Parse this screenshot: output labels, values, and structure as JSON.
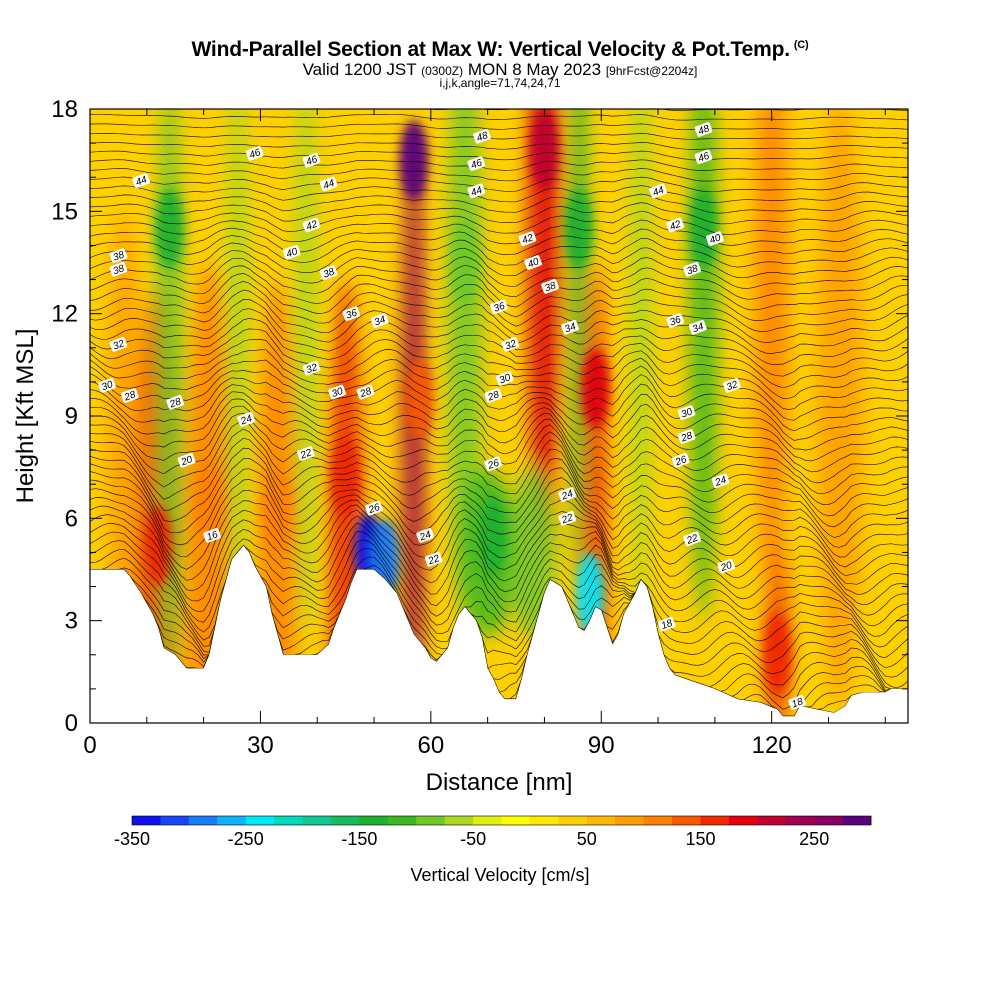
{
  "chart_data": {
    "type": "heatmap",
    "title": "Wind-Parallel Section at Max W: Vertical Velocity & Pot.Temp.",
    "copyright_mark": "(C)",
    "subtitle_valid": "Valid 1200 JST",
    "subtitle_utc": "(0300Z)",
    "subtitle_date": "MON 8 May 2023",
    "subtitle_fcst": "[9hrFcst@2204z]",
    "subtitle_indices": "i,j,k,angle=71,74,24,71",
    "xlabel": "Distance [nm]",
    "ylabel": "Height [Kft MSL]",
    "xlim": [
      0,
      144
    ],
    "ylim": [
      0,
      18
    ],
    "x_ticks": [
      0,
      30,
      60,
      90,
      120
    ],
    "y_ticks": [
      0,
      3,
      6,
      9,
      12,
      15,
      18
    ],
    "colorbar": {
      "label": "Vertical Velocity [cm/s]",
      "min": -350,
      "max": 300,
      "step": 25,
      "tick_values": [
        -350,
        -250,
        -150,
        -50,
        50,
        150,
        250
      ],
      "tick_labels": [
        "-350",
        "-250",
        "-150",
        "-50",
        "50",
        "150",
        "250"
      ],
      "colors": [
        "#1010ee",
        "#1747f5",
        "#1a7cf8",
        "#12b2fb",
        "#00e8f8",
        "#00d8b8",
        "#10c890",
        "#18bb60",
        "#20b030",
        "#3cb820",
        "#70c828",
        "#a8d820",
        "#e0ee10",
        "#ffff00",
        "#ffe800",
        "#ffd000",
        "#ffb800",
        "#ff9c00",
        "#ff8000",
        "#f85a00",
        "#f02800",
        "#e00010",
        "#c00030",
        "#a00050",
        "#880060",
        "#5c0080"
      ]
    },
    "series": [
      {
        "name": "Vertical Velocity [cm/s]",
        "features": [
          {
            "x": 12,
            "y": 5.2,
            "value": 150
          },
          {
            "x": 21,
            "y": 6.5,
            "value": 100
          },
          {
            "x": 33,
            "y": 6.2,
            "value": 100
          },
          {
            "x": 45,
            "y": 7.2,
            "value": 150
          },
          {
            "x": 49,
            "y": 5.0,
            "value": -350
          },
          {
            "x": 52,
            "y": 4.8,
            "value": -300
          },
          {
            "x": 57,
            "y": 16.5,
            "value": 275
          },
          {
            "x": 58,
            "y": 9.5,
            "value": 125
          },
          {
            "x": 80,
            "y": 16.8,
            "value": 200
          },
          {
            "x": 89,
            "y": 9.8,
            "value": 175
          },
          {
            "x": 86,
            "y": 14.5,
            "value": -150
          },
          {
            "x": 88,
            "y": 3.8,
            "value": -250
          },
          {
            "x": 14,
            "y": 14.5,
            "value": -150
          },
          {
            "x": 66,
            "y": 13.5,
            "value": -100
          },
          {
            "x": 71,
            "y": 5.5,
            "value": -150
          },
          {
            "x": 108,
            "y": 14.5,
            "value": -150
          },
          {
            "x": 121,
            "y": 2.0,
            "value": 150
          }
        ]
      },
      {
        "name": "Pot.Temp.",
        "contour_labels": [
          {
            "text": "44",
            "x": 9,
            "y": 15.9
          },
          {
            "text": "38",
            "x": 5,
            "y": 13.7
          },
          {
            "text": "38",
            "x": 5,
            "y": 13.3
          },
          {
            "text": "32",
            "x": 5,
            "y": 11.1
          },
          {
            "text": "30",
            "x": 3,
            "y": 9.9
          },
          {
            "text": "28",
            "x": 7,
            "y": 9.6
          },
          {
            "text": "28",
            "x": 15,
            "y": 9.4
          },
          {
            "text": "24",
            "x": 27.5,
            "y": 8.9
          },
          {
            "text": "20",
            "x": 17,
            "y": 7.7
          },
          {
            "text": "16",
            "x": 21.5,
            "y": 5.5
          },
          {
            "text": "46",
            "x": 29,
            "y": 16.7
          },
          {
            "text": "46",
            "x": 39,
            "y": 16.5
          },
          {
            "text": "44",
            "x": 42,
            "y": 15.8
          },
          {
            "text": "42",
            "x": 39,
            "y": 14.6
          },
          {
            "text": "40",
            "x": 35.5,
            "y": 13.8
          },
          {
            "text": "38",
            "x": 42,
            "y": 13.2
          },
          {
            "text": "36",
            "x": 46,
            "y": 12.0
          },
          {
            "text": "34",
            "x": 51,
            "y": 11.8
          },
          {
            "text": "32",
            "x": 39,
            "y": 10.4
          },
          {
            "text": "30",
            "x": 43.5,
            "y": 9.7
          },
          {
            "text": "28",
            "x": 48.5,
            "y": 9.7
          },
          {
            "text": "22",
            "x": 38,
            "y": 7.9
          },
          {
            "text": "26",
            "x": 50,
            "y": 6.3
          },
          {
            "text": "24",
            "x": 59,
            "y": 5.5
          },
          {
            "text": "22",
            "x": 60.5,
            "y": 4.8
          },
          {
            "text": "48",
            "x": 69,
            "y": 17.2
          },
          {
            "text": "46",
            "x": 68,
            "y": 16.4
          },
          {
            "text": "44",
            "x": 68,
            "y": 15.6
          },
          {
            "text": "42",
            "x": 77,
            "y": 14.2
          },
          {
            "text": "40",
            "x": 78,
            "y": 13.5
          },
          {
            "text": "38",
            "x": 81,
            "y": 12.8
          },
          {
            "text": "36",
            "x": 72,
            "y": 12.2
          },
          {
            "text": "32",
            "x": 74,
            "y": 11.1
          },
          {
            "text": "30",
            "x": 73,
            "y": 10.1
          },
          {
            "text": "28",
            "x": 71,
            "y": 9.6
          },
          {
            "text": "26",
            "x": 71,
            "y": 7.6
          },
          {
            "text": "24",
            "x": 84,
            "y": 6.7
          },
          {
            "text": "22",
            "x": 84,
            "y": 6.0
          },
          {
            "text": "34",
            "x": 84.5,
            "y": 11.6
          },
          {
            "text": "48",
            "x": 108,
            "y": 17.4
          },
          {
            "text": "46",
            "x": 108,
            "y": 16.6
          },
          {
            "text": "44",
            "x": 100,
            "y": 15.6
          },
          {
            "text": "42",
            "x": 103,
            "y": 14.6
          },
          {
            "text": "40",
            "x": 110,
            "y": 14.2
          },
          {
            "text": "38",
            "x": 106,
            "y": 13.3
          },
          {
            "text": "36",
            "x": 103,
            "y": 11.8
          },
          {
            "text": "34",
            "x": 107,
            "y": 11.6
          },
          {
            "text": "32",
            "x": 113,
            "y": 9.9
          },
          {
            "text": "30",
            "x": 105,
            "y": 9.1
          },
          {
            "text": "28",
            "x": 105,
            "y": 8.4
          },
          {
            "text": "26",
            "x": 104,
            "y": 7.7
          },
          {
            "text": "24",
            "x": 111,
            "y": 7.1
          },
          {
            "text": "22",
            "x": 106,
            "y": 5.4
          },
          {
            "text": "20",
            "x": 112,
            "y": 4.6
          },
          {
            "text": "18",
            "x": 101.5,
            "y": 2.9
          },
          {
            "text": "18",
            "x": 124.5,
            "y": 0.6
          }
        ]
      }
    ],
    "terrain": [
      [
        0,
        4.5
      ],
      [
        6,
        4.5
      ],
      [
        7,
        4.3
      ],
      [
        9,
        3.8
      ],
      [
        10,
        3.5
      ],
      [
        11,
        3.2
      ],
      [
        12,
        2.8
      ],
      [
        13,
        2.2
      ],
      [
        15,
        2.0
      ],
      [
        17,
        1.6
      ],
      [
        20,
        1.6
      ],
      [
        21,
        2.0
      ],
      [
        22,
        2.8
      ],
      [
        23,
        3.6
      ],
      [
        24,
        4.2
      ],
      [
        25,
        4.8
      ],
      [
        27,
        5.2
      ],
      [
        28,
        5.0
      ],
      [
        29,
        4.6
      ],
      [
        31,
        4.0
      ],
      [
        32,
        3.2
      ],
      [
        33,
        2.6
      ],
      [
        34,
        2.0
      ],
      [
        40,
        2.0
      ],
      [
        42,
        2.3
      ],
      [
        43,
        2.8
      ],
      [
        44,
        3.2
      ],
      [
        45,
        3.6
      ],
      [
        46,
        4.1
      ],
      [
        47,
        4.5
      ],
      [
        50,
        4.5
      ],
      [
        52,
        4.2
      ],
      [
        54,
        3.8
      ],
      [
        55,
        3.4
      ],
      [
        56,
        3.0
      ],
      [
        57,
        2.6
      ],
      [
        58,
        2.4
      ],
      [
        59,
        2.2
      ],
      [
        60,
        1.9
      ],
      [
        61,
        1.8
      ],
      [
        63,
        2.2
      ],
      [
        64,
        2.8
      ],
      [
        65,
        3.2
      ],
      [
        66,
        3.4
      ],
      [
        68,
        3.0
      ],
      [
        69,
        2.5
      ],
      [
        70,
        1.6
      ],
      [
        71,
        1.3
      ],
      [
        72,
        0.9
      ],
      [
        73,
        0.7
      ],
      [
        75,
        0.7
      ],
      [
        76,
        1.3
      ],
      [
        77,
        2.0
      ],
      [
        78,
        2.6
      ],
      [
        79,
        3.2
      ],
      [
        80,
        3.8
      ],
      [
        81,
        4.2
      ],
      [
        83,
        4.0
      ],
      [
        84,
        3.6
      ],
      [
        85,
        3.2
      ],
      [
        86,
        2.8
      ],
      [
        87,
        2.7
      ],
      [
        88,
        3.0
      ],
      [
        89,
        3.4
      ],
      [
        90,
        3.3
      ],
      [
        91,
        2.8
      ],
      [
        92,
        2.3
      ],
      [
        93,
        2.6
      ],
      [
        94,
        3.2
      ],
      [
        96,
        3.8
      ],
      [
        97,
        4.2
      ],
      [
        98,
        4.0
      ],
      [
        99,
        3.4
      ],
      [
        100,
        2.6
      ],
      [
        101,
        2.0
      ],
      [
        102,
        1.6
      ],
      [
        103,
        1.4
      ],
      [
        110,
        1.0
      ],
      [
        114,
        0.7
      ],
      [
        118,
        0.6
      ],
      [
        121,
        0.4
      ],
      [
        122,
        0.2
      ],
      [
        124,
        0.2
      ],
      [
        125,
        0.5
      ],
      [
        128,
        0.4
      ],
      [
        131,
        0.3
      ],
      [
        133,
        0.5
      ],
      [
        134,
        0.8
      ],
      [
        136,
        0.9
      ],
      [
        140,
        0.9
      ],
      [
        141,
        1.0
      ],
      [
        144,
        1.0
      ]
    ]
  }
}
